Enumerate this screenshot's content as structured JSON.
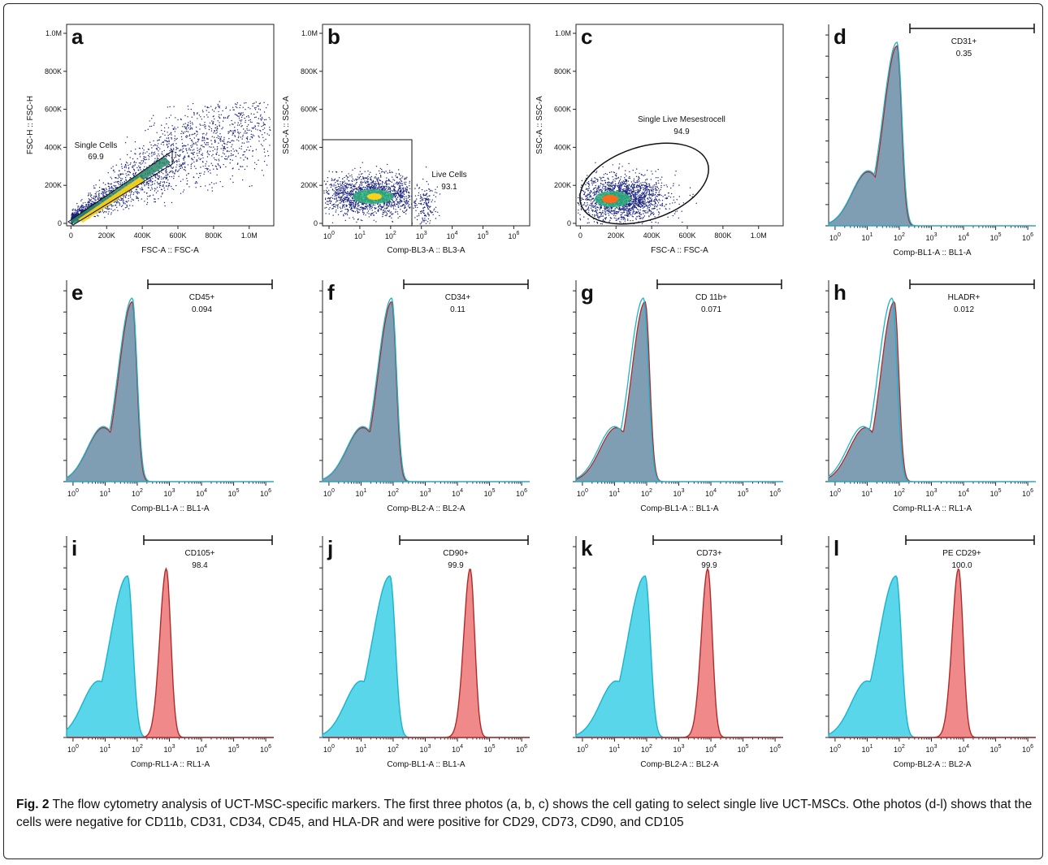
{
  "figure": {
    "caption_label": "Fig. 2",
    "caption_text": "The flow cytometry analysis of UCT-MSC-specific markers. The first three photos (a, b, c) shows the cell gating to select single live UCT-MSCs. Othe photos (d-l) shows that the cells were negative for CD11b, CD31, CD34, CD45, and HLA-DR and were positive for CD29, CD73, CD90, and CD105"
  },
  "colors": {
    "negative_fill": "#5ad6ea",
    "positive_fill": "#f08a8a",
    "overlap_fill": "#7f9db3",
    "cyan_line": "#1ab3cc",
    "red_line": "#b02a2a"
  },
  "chart_data": [
    {
      "panel": "a",
      "type": "scatter",
      "xlabel": "FSC-A :: FSC-A",
      "ylabel": "FSC-H :: FSC-H",
      "x_ticks": [
        "0",
        "200K",
        "400K",
        "600K",
        "800K",
        "1.0M"
      ],
      "y_ticks": [
        "0",
        "200K",
        "400K",
        "600K",
        "800K",
        "1.0M"
      ],
      "xlim": [
        0,
        1100000
      ],
      "ylim": [
        0,
        1000000
      ],
      "gate": {
        "name": "Single Cells",
        "value": "69.9"
      }
    },
    {
      "panel": "b",
      "type": "scatter",
      "xlabel": "Comp-BL3-A :: BL3-A",
      "ylabel": "SSC-A :: SSC-A",
      "x_ticks": [
        "10^0",
        "10^1",
        "10^2",
        "10^3",
        "10^4",
        "10^5",
        "10^6"
      ],
      "y_ticks": [
        "0",
        "200K",
        "400K",
        "600K",
        "800K",
        "1.0M"
      ],
      "xlim": [
        0.3,
        1000000
      ],
      "ylim": [
        0,
        1000000
      ],
      "x_scale": "log",
      "gate": {
        "name": "Live Cells",
        "value": "93.1"
      }
    },
    {
      "panel": "c",
      "type": "scatter",
      "xlabel": "FSC-A :: FSC-A",
      "ylabel": "SSC-A :: SSC-A",
      "x_ticks": [
        "0",
        "200K",
        "400K",
        "600K",
        "800K",
        "1.0M"
      ],
      "y_ticks": [
        "0",
        "200K",
        "400K",
        "600K",
        "800K",
        "1.0M"
      ],
      "xlim": [
        0,
        1050000
      ],
      "ylim": [
        0,
        1000000
      ],
      "gate": {
        "name": "Single Live Mesestrocell",
        "value": "94.9"
      }
    },
    {
      "panel": "d",
      "type": "area",
      "xlabel": "Comp-BL1-A :: BL1-A",
      "gate": {
        "name": "CD31+",
        "value": "0.35"
      },
      "x_scale": "log",
      "series": [
        {
          "peak": 85
        },
        {
          "peak": 85
        }
      ]
    },
    {
      "panel": "e",
      "type": "area",
      "xlabel": "Comp-BL1-A :: BL1-A",
      "gate": {
        "name": "CD45+",
        "value": "0.094"
      },
      "x_scale": "log",
      "series": [
        {
          "peak": 70
        },
        {
          "peak": 70
        }
      ]
    },
    {
      "panel": "f",
      "type": "area",
      "xlabel": "Comp-BL2-A :: BL2-A",
      "gate": {
        "name": "CD34+",
        "value": "0.11"
      },
      "x_scale": "log",
      "series": [
        {
          "peak": 90
        },
        {
          "peak": 90
        }
      ]
    },
    {
      "panel": "g",
      "type": "area",
      "xlabel": "Comp-BL1-A :: BL1-A",
      "gate": {
        "name": "CD 11b+",
        "value": "0.071"
      },
      "x_scale": "log",
      "series": [
        {
          "peak": 80
        },
        {
          "peak": 90
        }
      ]
    },
    {
      "panel": "h",
      "type": "area",
      "xlabel": "Comp-RL1-A :: RL1-A",
      "gate": {
        "name": "HLADR+",
        "value": "0.012"
      },
      "x_scale": "log",
      "series": [
        {
          "peak": 60
        },
        {
          "peak": 70
        }
      ]
    },
    {
      "panel": "i",
      "type": "area",
      "xlabel": "Comp-RL1-A :: RL1-A",
      "gate": {
        "name": "CD105+",
        "value": "98.4"
      },
      "x_scale": "log",
      "series": [
        {
          "peak": 50
        },
        {
          "peak": 800
        }
      ]
    },
    {
      "panel": "j",
      "type": "area",
      "xlabel": "Comp-BL1-A :: BL1-A",
      "gate": {
        "name": "CD90+",
        "value": "99.9"
      },
      "x_scale": "log",
      "series": [
        {
          "peak": 80
        },
        {
          "peak": 25000
        }
      ]
    },
    {
      "panel": "k",
      "type": "area",
      "xlabel": "Comp-BL2-A :: BL2-A",
      "gate": {
        "name": "CD73+",
        "value": "99.9"
      },
      "x_scale": "log",
      "series": [
        {
          "peak": 90
        },
        {
          "peak": 8000
        }
      ]
    },
    {
      "panel": "l",
      "type": "area",
      "xlabel": "Comp-BL2-A :: BL2-A",
      "gate": {
        "name": "PE CD29+",
        "value": "100.0"
      },
      "x_scale": "log",
      "series": [
        {
          "peak": 80
        },
        {
          "peak": 7000
        }
      ]
    }
  ]
}
